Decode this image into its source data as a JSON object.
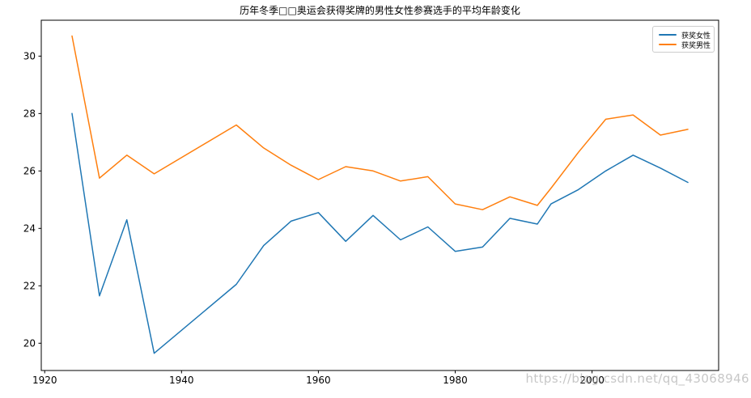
{
  "chart": {
    "watermark_text": "https://blog.csdn.net/qq_43068946"
  },
  "chart_data": {
    "type": "line",
    "title": "历年冬季□□奥运会获得奖牌的男性女性参赛选手的平均年龄变化",
    "xlabel": "",
    "ylabel": "",
    "x": [
      1924,
      1928,
      1932,
      1936,
      1948,
      1952,
      1956,
      1960,
      1964,
      1968,
      1972,
      1976,
      1980,
      1984,
      1988,
      1992,
      1994,
      1998,
      2002,
      2006,
      2010,
      2014
    ],
    "series": [
      {
        "name": "获奖女性",
        "color": "#1f77b4",
        "values": [
          28.0,
          21.65,
          24.3,
          19.65,
          22.05,
          23.4,
          24.25,
          24.55,
          23.55,
          24.45,
          23.6,
          24.05,
          23.2,
          23.35,
          24.35,
          24.15,
          24.85,
          25.35,
          26.0,
          26.55,
          26.1,
          25.6
        ]
      },
      {
        "name": "获奖男性",
        "color": "#ff7f0e",
        "values": [
          30.7,
          25.75,
          26.55,
          25.9,
          27.6,
          26.8,
          26.2,
          25.7,
          26.15,
          26.0,
          25.65,
          25.8,
          24.85,
          24.65,
          25.1,
          24.8,
          25.4,
          26.65,
          27.8,
          27.95,
          27.25,
          27.45
        ]
      }
    ],
    "xlim": [
      1919.5,
      2018.5
    ],
    "ylim": [
      19.05,
      31.25
    ],
    "x_ticks": [
      1920,
      1940,
      1960,
      1980,
      2000
    ],
    "y_ticks": [
      20,
      22,
      24,
      26,
      28,
      30
    ],
    "grid": false,
    "legend_position": "upper right",
    "axis_color": "#000000",
    "tick_label_color": "#000000"
  }
}
